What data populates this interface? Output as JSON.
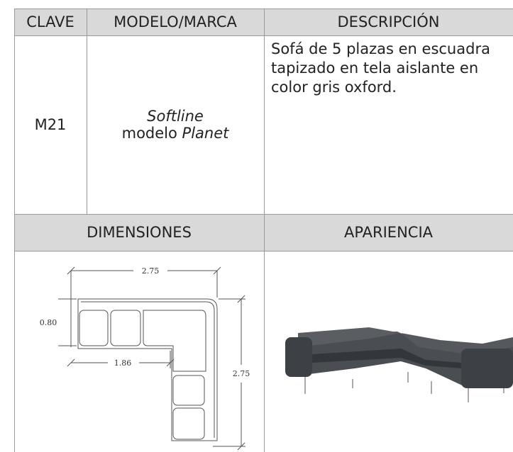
{
  "table": {
    "header": [
      "CLAVE",
      "MODELO/MARCA",
      "DESCRIPCIÓN"
    ],
    "row": {
      "clave": "M21",
      "model": {
        "brand": "Softline",
        "prefix": "modelo",
        "name": "Planet"
      },
      "description": "Sofá de 5 plazas en escuadra tapizado en tela aislante en color gris oxford."
    },
    "section_header": [
      "DIMENSIONES",
      "APARIENCIA"
    ]
  },
  "dimensions": {
    "top": "2.75",
    "depth": "0.80",
    "inner": "1.86",
    "side": "2.75"
  }
}
